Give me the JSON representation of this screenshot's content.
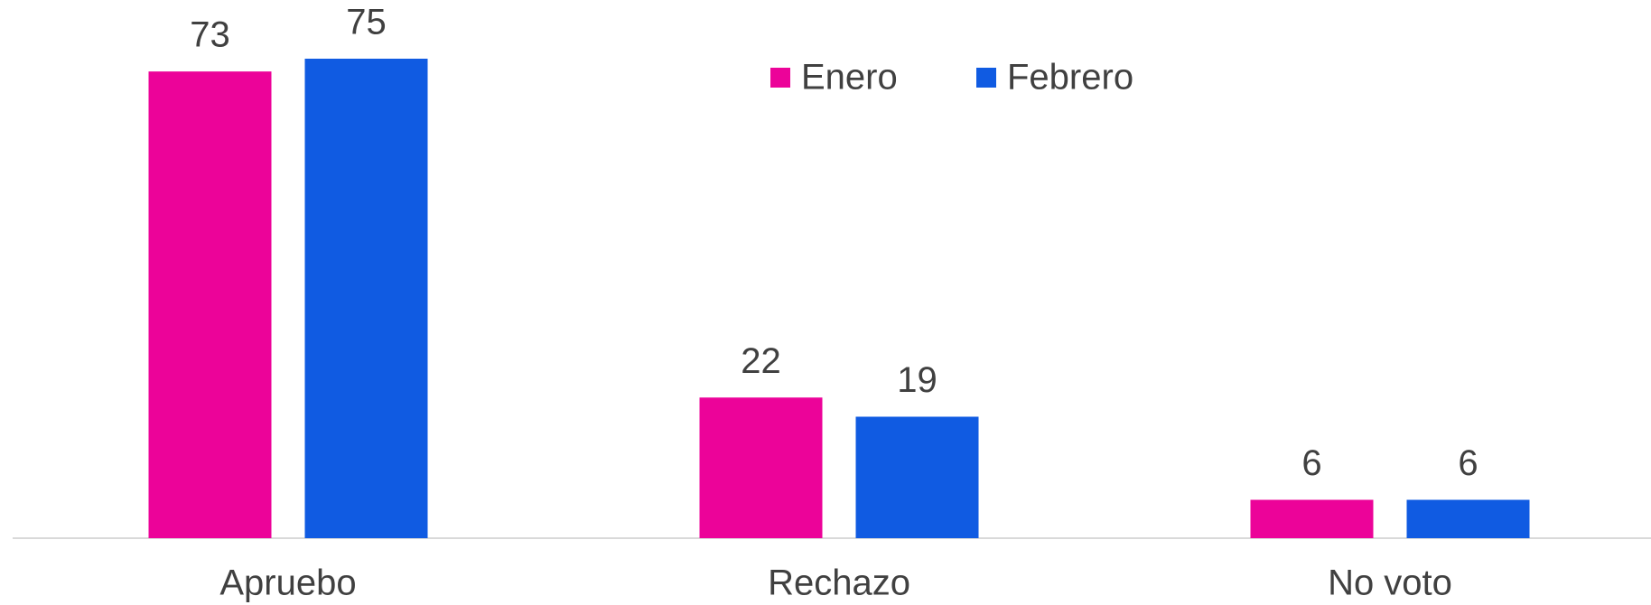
{
  "chart_data": {
    "type": "bar",
    "categories": [
      "Apruebo",
      "Rechazo",
      "No voto"
    ],
    "series": [
      {
        "name": "Enero",
        "color": "#ec0399",
        "values": [
          73,
          22,
          6
        ]
      },
      {
        "name": "Febrero",
        "color": "#105be2",
        "values": [
          75,
          19,
          6
        ]
      }
    ],
    "legend": "top"
  }
}
